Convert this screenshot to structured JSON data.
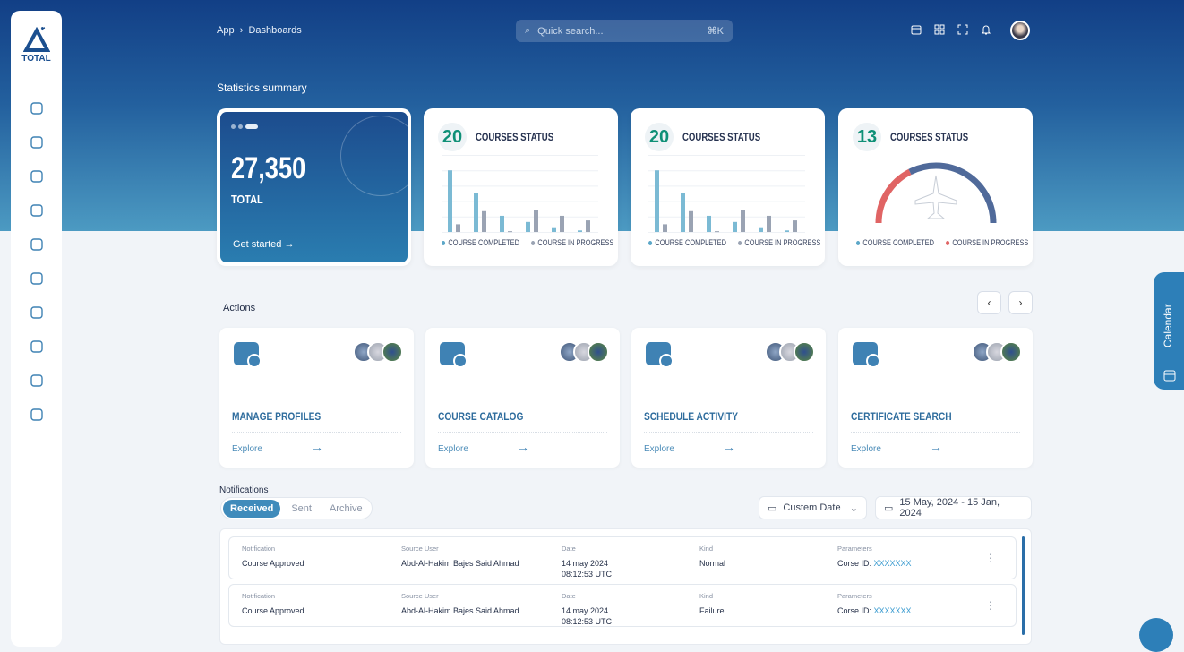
{
  "app": {
    "logo_text": "TOTAL",
    "breadcrumb": [
      "App",
      "Dashboards"
    ],
    "search_placeholder": "Quick search...",
    "search_shortcut": "⌘K"
  },
  "sidebar": {
    "items": [
      "home-icon",
      "dashboard-icon",
      "id-card-icon",
      "bell-settings-icon",
      "document-icon",
      "globe-icon",
      "list-icon",
      "file-search-icon",
      "database-icon",
      "copy-icon"
    ]
  },
  "stats": {
    "title": "Statistics summary",
    "total": {
      "value": "27,350",
      "label": "TOTAL",
      "cta": "Get started"
    },
    "cards": [
      {
        "count": "20",
        "title": "COURSES STATUS",
        "legend": [
          "COURSE COMPLETED",
          "COURSE IN PROGRESS"
        ]
      },
      {
        "count": "20",
        "title": "COURSES STATUS",
        "legend": [
          "COURSE COMPLETED",
          "COURSE IN PROGRESS"
        ]
      },
      {
        "count": "13",
        "title": "COURSES STATUS",
        "legend": [
          "COURSE COMPLETED",
          "COURSE IN PROGRESS"
        ]
      }
    ]
  },
  "chart_data": [
    {
      "type": "bar",
      "series": [
        {
          "name": "COURSE COMPLETED",
          "color": "#7bbad4",
          "values": [
            4,
            2.55,
            1.05,
            0.65,
            0.25,
            0.1
          ]
        },
        {
          "name": "COURSE IN PROGRESS",
          "color": "#9aa3b3",
          "values": [
            0.5,
            1.35,
            0.05,
            1.4,
            1.05,
            0.75
          ]
        }
      ],
      "ylim": [
        0,
        5
      ]
    },
    {
      "type": "bar",
      "series": [
        {
          "name": "COURSE COMPLETED",
          "color": "#7bbad4",
          "values": [
            4,
            2.55,
            1.05,
            0.65,
            0.25,
            0.1
          ]
        },
        {
          "name": "COURSE IN PROGRESS",
          "color": "#9aa3b3",
          "values": [
            0.5,
            1.35,
            0.05,
            1.4,
            1.05,
            0.75
          ]
        }
      ],
      "ylim": [
        0,
        5
      ]
    },
    {
      "type": "pie",
      "series": [
        {
          "name": "COURSE COMPLETED",
          "color": "#506a9a",
          "value": 65
        },
        {
          "name": "COURSE IN PROGRESS",
          "color": "#e06464",
          "value": 35
        }
      ]
    }
  ],
  "actions": {
    "title": "Actions",
    "items": [
      {
        "name": "MANAGE PROFILES",
        "link": "Explore"
      },
      {
        "name": "COURSE CATALOG",
        "link": "Explore"
      },
      {
        "name": "SCHEDULE ACTIVITY",
        "link": "Explore"
      },
      {
        "name": "CERTIFICATE SEARCH",
        "link": "Explore"
      }
    ]
  },
  "notifications": {
    "title": "Notifications",
    "tabs": [
      "Received",
      "Sent",
      "Archive"
    ],
    "date_filter": "Custem Date",
    "date_range": "15 May, 2024 - 15 Jan, 2024",
    "headers": [
      "Notification",
      "Source User",
      "Date",
      "Kind",
      "Parameters"
    ],
    "rows": [
      {
        "notification": "Course Approved",
        "user": "Abd-Al-Hakim Bajes Said Ahmad",
        "date": "14 may 2024",
        "time": "08:12:53 UTC",
        "kind": "Normal",
        "param_label": "Corse ID:",
        "param_value": "XXXXXXX"
      },
      {
        "notification": "Course Approved",
        "user": "Abd-Al-Hakim Bajes Said Ahmad",
        "date": "14 may 2024",
        "time": "08:12:53 UTC",
        "kind": "Failure",
        "param_label": "Corse ID:",
        "param_value": "XXXXXXX"
      }
    ]
  },
  "calendar_tab": "Calendar"
}
